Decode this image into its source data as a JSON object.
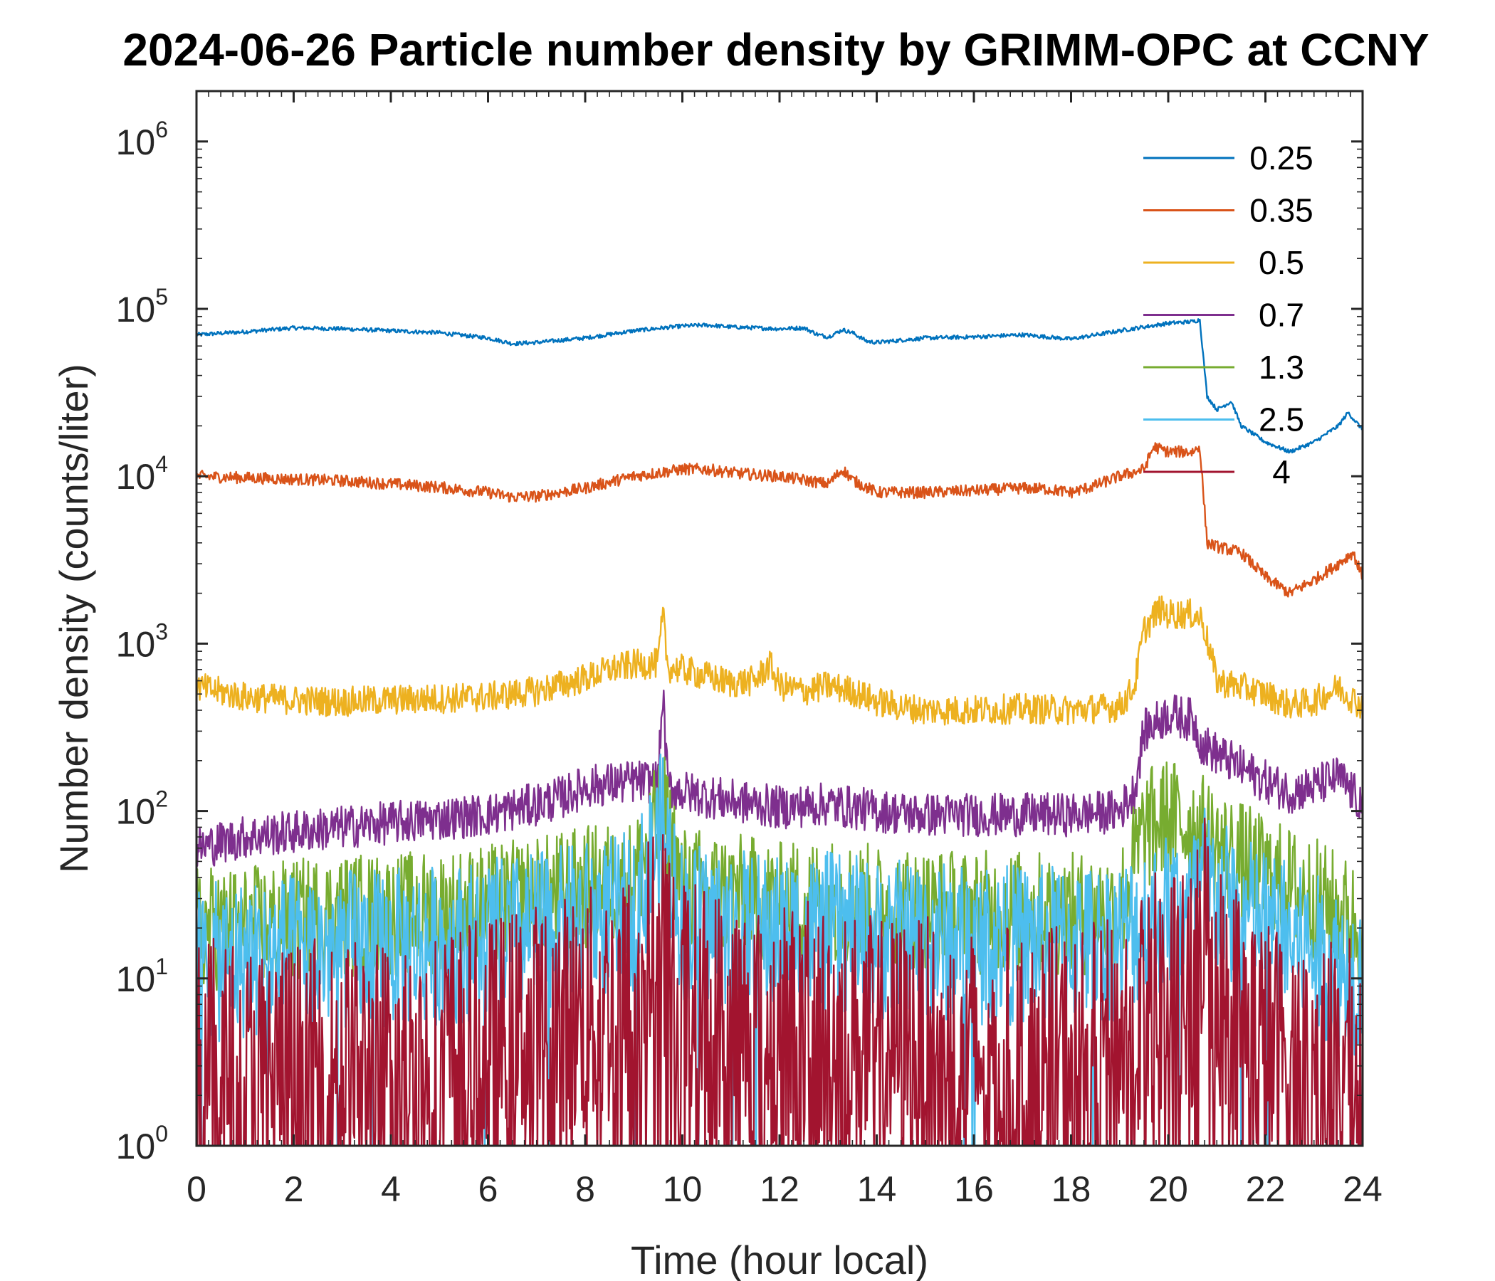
{
  "chart_data": {
    "type": "line",
    "title": "2024-06-26 Particle number density by GRIMM-OPC at CCNY",
    "xlabel": "Time (hour local)",
    "ylabel": "Number density (counts/liter)",
    "xlim": [
      0,
      24
    ],
    "ylim": [
      1,
      2000000
    ],
    "yscale": "log",
    "xticks": [
      "0",
      "2",
      "4",
      "6",
      "8",
      "10",
      "12",
      "14",
      "16",
      "18",
      "20",
      "22",
      "24"
    ],
    "yticks": [
      {
        "base": "10",
        "exp": "0"
      },
      {
        "base": "10",
        "exp": "1"
      },
      {
        "base": "10",
        "exp": "2"
      },
      {
        "base": "10",
        "exp": "3"
      },
      {
        "base": "10",
        "exp": "4"
      },
      {
        "base": "10",
        "exp": "5"
      },
      {
        "base": "10",
        "exp": "6"
      }
    ],
    "grid": false,
    "legend_position": "top-right",
    "series": [
      {
        "name": "0.25",
        "color": "#0072BD",
        "x": [
          0,
          1,
          2,
          3,
          4,
          5,
          6,
          6.5,
          7,
          8,
          9,
          10,
          10.5,
          11,
          12,
          12.5,
          12.8,
          13,
          13.3,
          13.5,
          13.8,
          14,
          15,
          16,
          17,
          17.5,
          18,
          19,
          19.5,
          20,
          20.5,
          20.65,
          20.8,
          21,
          21.3,
          21.5,
          22,
          22.5,
          23,
          23.5,
          23.7,
          24
        ],
        "y": [
          70000,
          73000,
          77000,
          76000,
          74000,
          72000,
          67000,
          62000,
          63000,
          67000,
          74000,
          79000,
          80000,
          78000,
          76000,
          77000,
          70000,
          68000,
          75000,
          72000,
          64000,
          63000,
          67000,
          68000,
          70000,
          68000,
          66000,
          74000,
          78000,
          82000,
          84000,
          86000,
          30000,
          25000,
          28000,
          20000,
          16000,
          14000,
          16000,
          20000,
          24000,
          19000
        ]
      },
      {
        "name": "0.35",
        "color": "#D95319",
        "x": [
          0,
          1,
          2,
          3,
          4,
          5,
          6,
          6.5,
          7,
          8,
          9,
          10,
          10.5,
          11,
          11.5,
          12,
          12.5,
          13,
          13.3,
          13.5,
          14,
          15,
          16,
          17,
          17.5,
          18,
          18.5,
          19,
          19.5,
          19.7,
          20,
          20.5,
          20.65,
          20.8,
          21,
          21.5,
          22,
          22.5,
          23,
          23.5,
          23.8,
          24
        ],
        "y": [
          10000,
          9800,
          9600,
          9400,
          9000,
          8600,
          8000,
          7500,
          7600,
          8500,
          10000,
          11000,
          11000,
          10500,
          10200,
          10000,
          9500,
          9000,
          11000,
          9500,
          8000,
          8000,
          8200,
          8500,
          8400,
          8000,
          8800,
          10000,
          11000,
          15000,
          14000,
          14000,
          15000,
          4000,
          3800,
          3500,
          2500,
          2000,
          2400,
          3000,
          3500,
          2500
        ]
      },
      {
        "name": "0.5",
        "color": "#EDB120",
        "x": [
          0,
          1,
          2,
          3,
          4,
          5,
          6,
          7,
          8,
          8.5,
          9,
          9.5,
          9.6,
          9.7,
          10,
          11,
          11.5,
          11.8,
          12,
          12.5,
          13,
          13.5,
          14,
          14.5,
          15,
          16,
          17,
          18,
          19,
          19.3,
          19.5,
          19.8,
          20,
          20.5,
          20.7,
          21,
          21.5,
          22,
          22.5,
          23,
          23.5,
          24
        ],
        "y": [
          550,
          480,
          460,
          450,
          460,
          470,
          480,
          520,
          620,
          700,
          750,
          760,
          1500,
          720,
          700,
          580,
          600,
          750,
          560,
          520,
          560,
          520,
          450,
          420,
          400,
          400,
          410,
          400,
          420,
          550,
          1200,
          1600,
          1500,
          1500,
          1400,
          600,
          550,
          500,
          430,
          450,
          550,
          420
        ]
      },
      {
        "name": "0.7",
        "color": "#7E2F8E",
        "x": [
          0,
          1,
          2,
          3,
          4,
          5,
          6,
          7,
          7.5,
          8,
          9,
          9.5,
          9.6,
          9.7,
          10,
          11,
          12,
          13,
          14,
          15,
          16,
          17,
          18,
          19,
          19.3,
          19.5,
          20,
          20.5,
          20.7,
          21,
          22,
          22.5,
          23,
          23.5,
          24
        ],
        "y": [
          60,
          70,
          75,
          80,
          85,
          90,
          95,
          110,
          120,
          140,
          150,
          150,
          500,
          140,
          130,
          115,
          105,
          110,
          100,
          95,
          95,
          95,
          95,
          100,
          130,
          300,
          380,
          350,
          250,
          220,
          150,
          130,
          140,
          160,
          110
        ]
      },
      {
        "name": "1.3",
        "color": "#77AC30",
        "x": [
          0,
          1,
          2,
          3,
          4,
          5,
          6,
          7,
          8,
          9,
          9.6,
          10,
          11,
          12,
          13,
          14,
          15,
          16,
          17,
          18,
          19,
          19.5,
          20,
          20.5,
          21,
          22,
          23,
          24
        ],
        "y": [
          20,
          20,
          22,
          24,
          24,
          25,
          27,
          30,
          35,
          38,
          100,
          35,
          32,
          28,
          30,
          27,
          26,
          25,
          25,
          24,
          26,
          75,
          90,
          80,
          60,
          40,
          30,
          20
        ]
      },
      {
        "name": "2.5",
        "color": "#4DBEEE",
        "x": [
          0,
          1,
          2,
          3,
          4,
          5,
          6,
          7,
          8,
          9,
          9.6,
          10,
          11,
          12,
          13,
          14,
          15,
          16,
          17,
          18,
          19,
          19.5,
          20,
          20.5,
          20.7,
          21,
          22,
          23,
          24
        ],
        "y": [
          12,
          13,
          14,
          15,
          15,
          16,
          17,
          19,
          22,
          25,
          80,
          22,
          20,
          18,
          19,
          17,
          17,
          16,
          16,
          16,
          17,
          22,
          25,
          25,
          40,
          30,
          20,
          14,
          10
        ]
      },
      {
        "name": "4",
        "color": "#A2142F",
        "x": [
          0,
          1,
          2,
          3,
          4,
          5,
          6,
          7,
          8,
          9,
          9.6,
          10,
          11,
          12,
          13,
          14,
          15,
          16,
          17,
          18,
          19,
          19.5,
          20,
          20.5,
          20.7,
          21,
          22,
          23,
          24
        ],
        "y": [
          3,
          3,
          3,
          3,
          3,
          3.5,
          4,
          5,
          6,
          8,
          20,
          7,
          6,
          5,
          5,
          4,
          4,
          3.5,
          3.5,
          3.5,
          4,
          7,
          8,
          7,
          25,
          10,
          4,
          3,
          3
        ]
      }
    ]
  }
}
